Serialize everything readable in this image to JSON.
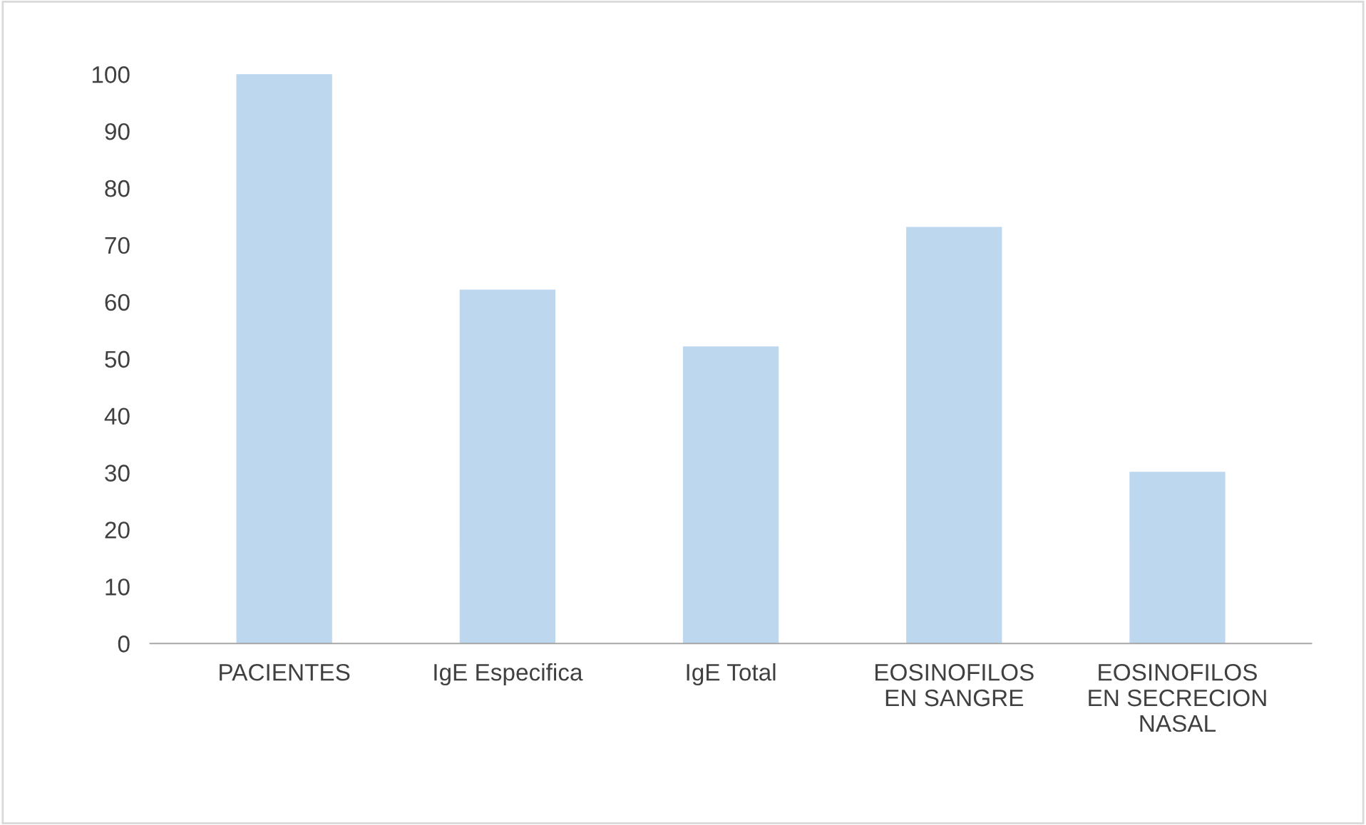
{
  "chart_data": {
    "type": "bar",
    "categories": [
      "PACIENTES",
      "IgE Especifica",
      "IgE Total",
      "EOSINOFILOS\nEN SANGRE",
      "EOSINOFILOS\nEN SECRECION\nNASAL"
    ],
    "values": [
      100,
      62,
      52,
      73,
      30
    ],
    "color": "#bdd7ee",
    "ylim": [
      0,
      100
    ],
    "yticks": [
      0,
      10,
      20,
      30,
      40,
      50,
      60,
      70,
      80,
      90,
      100
    ],
    "grid": false
  }
}
